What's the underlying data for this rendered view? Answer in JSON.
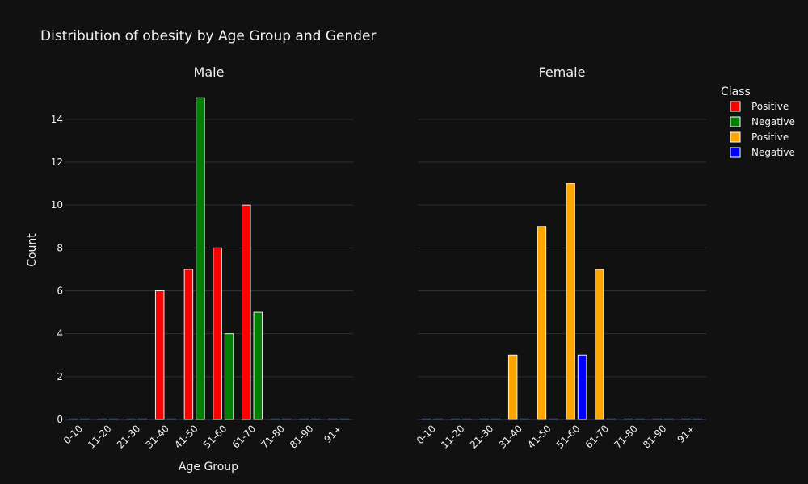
{
  "chart_data": {
    "type": "bar",
    "title": "Distribution of obesity by Age Group and Gender",
    "xlabel": "Age Group",
    "ylabel": "Count",
    "ylim": [
      0,
      15.8
    ],
    "yticks": [
      0,
      2,
      4,
      6,
      8,
      10,
      12,
      14
    ],
    "grid": true,
    "legend": {
      "title": "Class",
      "placement": "top-right"
    },
    "categories": [
      "0-10",
      "11-20",
      "21-30",
      "31-40",
      "41-50",
      "51-60",
      "61-70",
      "71-80",
      "81-90",
      "91+"
    ],
    "panels": [
      {
        "title": "Male",
        "series": [
          {
            "name": "Positive",
            "color": "#ff0000",
            "values": [
              0,
              0,
              0,
              6,
              7,
              8,
              10,
              0,
              0,
              0
            ]
          },
          {
            "name": "Negative",
            "color": "#008000",
            "values": [
              0,
              0,
              0,
              0,
              15,
              4,
              5,
              0,
              0,
              0
            ]
          }
        ]
      },
      {
        "title": "Female",
        "series": [
          {
            "name": "Positive",
            "color": "#ffa500",
            "values": [
              0,
              0,
              0,
              3,
              9,
              11,
              7,
              0,
              0,
              0
            ]
          },
          {
            "name": "Negative",
            "color": "#0000ff",
            "values": [
              0,
              0,
              0,
              0,
              0,
              3,
              0,
              0,
              0,
              0
            ]
          }
        ]
      }
    ]
  }
}
